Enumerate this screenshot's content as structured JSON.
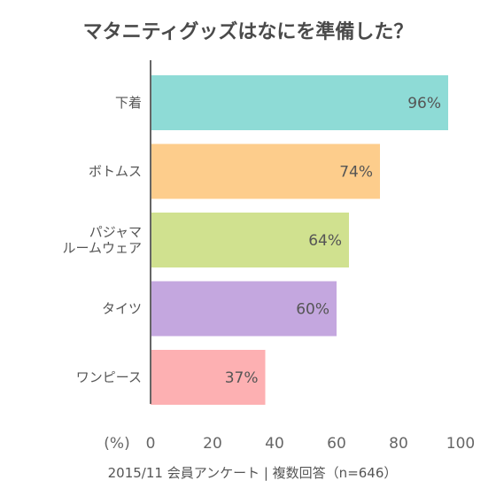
{
  "chart_data": {
    "type": "bar",
    "orientation": "horizontal",
    "title": "マタニティグッズはなにを準備した？",
    "categories": [
      [
        "下着"
      ],
      [
        "ボトムス"
      ],
      [
        "パジャマ",
        "ルームウェア"
      ],
      [
        "タイツ"
      ],
      [
        "ワンピース"
      ]
    ],
    "values": [
      96,
      74,
      64,
      60,
      37
    ],
    "value_labels": [
      "96%",
      "74%",
      "64%",
      "60%",
      "37%"
    ],
    "colors": [
      "#8edbd6",
      "#fdcd8c",
      "#d0e18f",
      "#c4a7df",
      "#fdb0b2"
    ],
    "xlim": [
      0,
      100
    ],
    "xticks": [
      "0",
      "20",
      "40",
      "60",
      "80",
      "100"
    ],
    "xunit": "(%)",
    "grid": false
  },
  "footnote": "2015/11 会員アンケート | 複数回答（n=646）"
}
